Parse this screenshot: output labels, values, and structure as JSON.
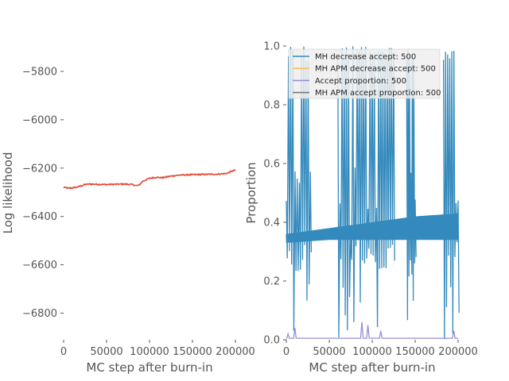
{
  "chart_data": [
    {
      "type": "line",
      "xlabel": "MC step after burn-in",
      "ylabel": "Log likelihood",
      "xlim": [
        0,
        200000
      ],
      "ylim": [
        -6910,
        -5695
      ],
      "x_ticks": [
        0,
        50000,
        100000,
        150000,
        200000
      ],
      "x_tick_labels": [
        "0",
        "50000",
        "100000",
        "150000",
        "200000"
      ],
      "y_ticks": [
        -6800,
        -6600,
        -6400,
        -6200,
        -6000,
        -5800
      ],
      "y_tick_labels": [
        "−6800",
        "−6600",
        "−6400",
        "−6200",
        "−6000",
        "−5800"
      ],
      "grid": false,
      "series": [
        {
          "color": "#e24a33",
          "points": [
            [
              0,
              -6279
            ],
            [
              5000,
              -6283
            ],
            [
              10000,
              -6282
            ],
            [
              15000,
              -6279
            ],
            [
              20000,
              -6274
            ],
            [
              25000,
              -6268
            ],
            [
              30000,
              -6266
            ],
            [
              40000,
              -6267
            ],
            [
              50000,
              -6268
            ],
            [
              60000,
              -6267
            ],
            [
              70000,
              -6266
            ],
            [
              80000,
              -6268
            ],
            [
              85000,
              -6273
            ],
            [
              88000,
              -6270
            ],
            [
              92000,
              -6255
            ],
            [
              100000,
              -6242
            ],
            [
              108000,
              -6238
            ],
            [
              115000,
              -6240
            ],
            [
              125000,
              -6233
            ],
            [
              135000,
              -6229
            ],
            [
              150000,
              -6227
            ],
            [
              165000,
              -6226
            ],
            [
              180000,
              -6225
            ],
            [
              190000,
              -6222
            ],
            [
              195000,
              -6214
            ],
            [
              200000,
              -6208
            ]
          ]
        }
      ]
    },
    {
      "type": "line",
      "xlabel": "MC step after burn-in",
      "ylabel": "Proportion",
      "xlim": [
        0,
        200000
      ],
      "ylim": [
        0,
        1.0
      ],
      "x_ticks": [
        0,
        50000,
        100000,
        150000,
        200000
      ],
      "x_tick_labels": [
        "0",
        "50000",
        "100000",
        "150000",
        "200000"
      ],
      "y_ticks": [
        0.0,
        0.2,
        0.4,
        0.6,
        0.8,
        1.0
      ],
      "y_tick_labels": [
        "0.0",
        "0.2",
        "0.4",
        "0.6",
        "0.8",
        "1.0"
      ],
      "grid": false,
      "legend": {
        "placement": "top",
        "entries": [
          {
            "label": "MH decrease accept: 500",
            "color": "#348abd"
          },
          {
            "label": "MH APM decrease accept: 500",
            "color": "#fbc15e"
          },
          {
            "label": "Accept proportion: 500",
            "color": "#988ed5"
          },
          {
            "label": "MH APM accept proportion: 500",
            "color": "#777777"
          }
        ]
      },
      "series": [
        {
          "color": "#348abd",
          "band_lower": [
            [
              0,
              0.33
            ],
            [
              50000,
              0.34
            ],
            [
              100000,
              0.34
            ],
            [
              150000,
              0.34
            ],
            [
              200000,
              0.34
            ]
          ],
          "band_upper": [
            [
              0,
              0.36
            ],
            [
              50000,
              0.38
            ],
            [
              100000,
              0.4
            ],
            [
              150000,
              0.42
            ],
            [
              200000,
              0.43
            ]
          ],
          "spike_regions": [
            [
              0,
              28000,
              1.0,
              0.0
            ],
            [
              60000,
              125000,
              1.0,
              0.0
            ],
            [
              140000,
              150000,
              1.0,
              0.0
            ],
            [
              183000,
              200000,
              1.0,
              0.0
            ]
          ]
        },
        {
          "color": "#988ed5",
          "bumps": [
            [
              2000,
              0.02
            ],
            [
              10000,
              0.04
            ],
            [
              88000,
              0.06
            ],
            [
              95000,
              0.05
            ],
            [
              110000,
              0.03
            ],
            [
              195000,
              0.03
            ]
          ]
        }
      ]
    }
  ]
}
